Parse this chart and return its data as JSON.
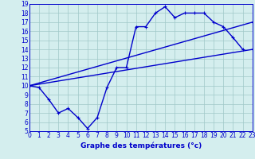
{
  "title": "Graphe des températures (°c)",
  "bg_color": "#d4eeee",
  "grid_color": "#a0c8c8",
  "line_color": "#0000cc",
  "ylim": [
    5,
    19
  ],
  "xlim": [
    0,
    23
  ],
  "yticks": [
    5,
    6,
    7,
    8,
    9,
    10,
    11,
    12,
    13,
    14,
    15,
    16,
    17,
    18,
    19
  ],
  "xticks": [
    0,
    1,
    2,
    3,
    4,
    5,
    6,
    7,
    8,
    9,
    10,
    11,
    12,
    13,
    14,
    15,
    16,
    17,
    18,
    19,
    20,
    21,
    22,
    23
  ],
  "line1_x": [
    0,
    1,
    2,
    3,
    4,
    5,
    6,
    7,
    8,
    9,
    10,
    11,
    12,
    13,
    14,
    15,
    16,
    17,
    18,
    19,
    20,
    21,
    22
  ],
  "line1_y": [
    10.0,
    9.8,
    8.5,
    7.0,
    7.5,
    6.5,
    5.3,
    6.5,
    9.8,
    12.0,
    12.0,
    16.5,
    16.5,
    18.0,
    18.7,
    17.5,
    18.0,
    18.0,
    18.0,
    17.0,
    16.5,
    15.3,
    14.0
  ],
  "line2_x": [
    0,
    23
  ],
  "line2_y": [
    10.0,
    14.0
  ],
  "line3_x": [
    0,
    23
  ],
  "line3_y": [
    10.0,
    17.0
  ],
  "tick_fontsize": 5.5,
  "xlabel_fontsize": 6.5,
  "linewidth": 1.0,
  "marker_size": 3.5
}
